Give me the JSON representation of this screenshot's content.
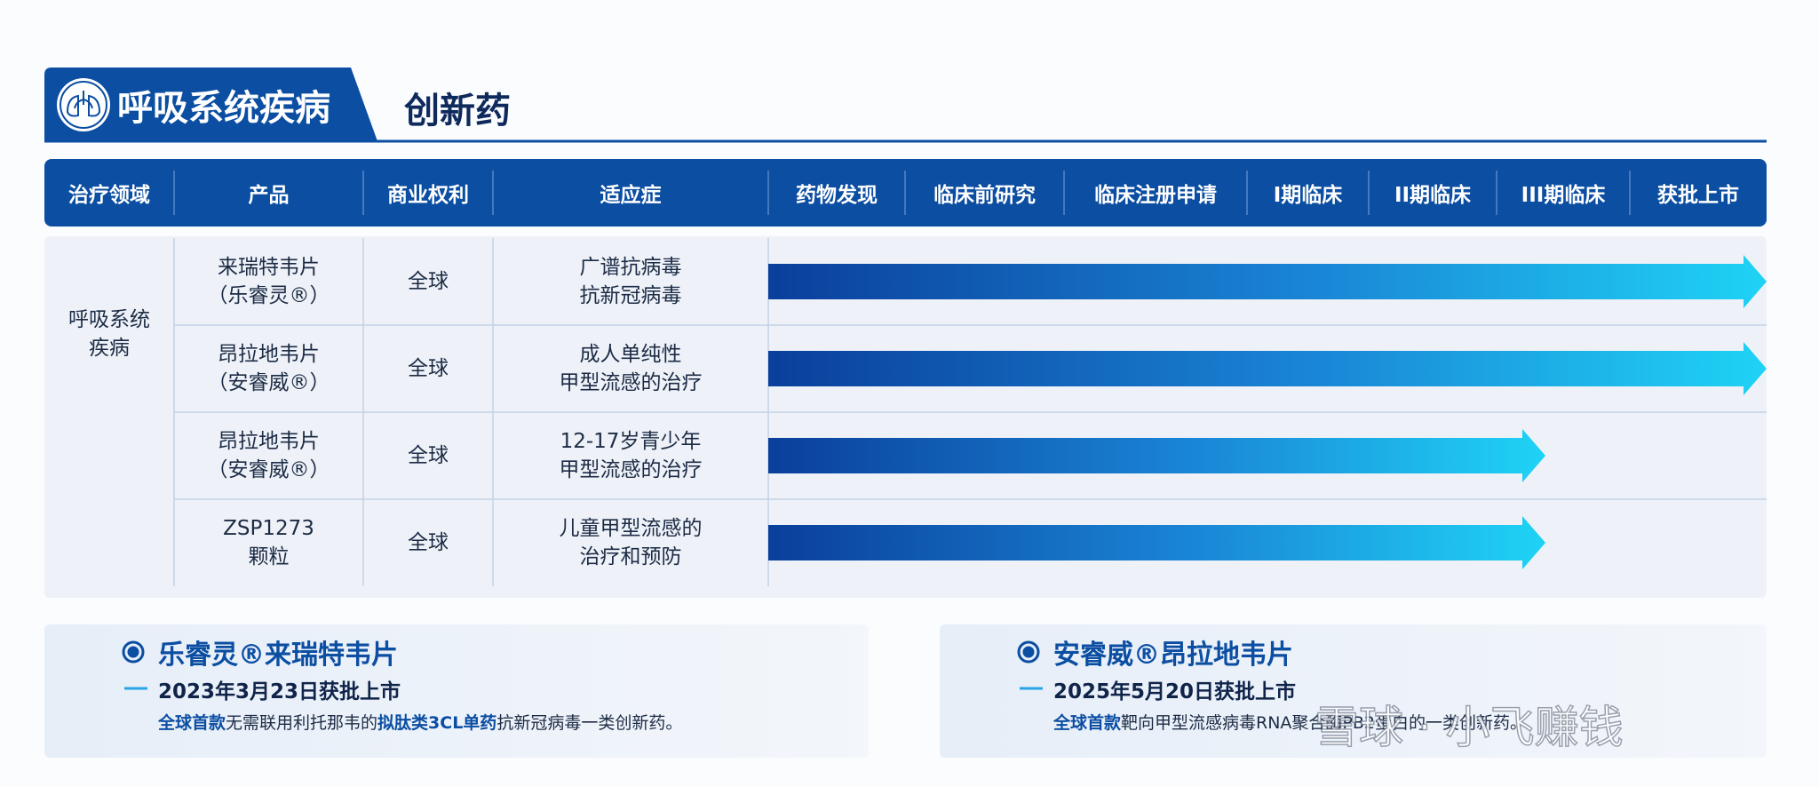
{
  "header": {
    "category": "呼吸系统疾病",
    "title": "创新药"
  },
  "table": {
    "columns": [
      "治疗领域",
      "产品",
      "商业权利",
      "适应症",
      "药物发现",
      "临床前研究",
      "临床注册申请",
      "I期临床",
      "II期临床",
      "III期临床",
      "获批上市"
    ],
    "area": [
      "呼吸系统",
      "疾病"
    ],
    "rows": [
      {
        "product": [
          "来瑞特韦片",
          "（乐睿灵®）"
        ],
        "rights": "全球",
        "indication": [
          "广谱抗病毒",
          "抗新冠病毒"
        ]
      },
      {
        "product": [
          "昂拉地韦片",
          "（安睿威®）"
        ],
        "rights": "全球",
        "indication": [
          "成人单纯性",
          "甲型流感的治疗"
        ]
      },
      {
        "product": [
          "昂拉地韦片",
          "（安睿威®）"
        ],
        "rights": "全球",
        "indication": [
          "12-17岁青少年",
          "甲型流感的治疗"
        ]
      },
      {
        "product": [
          "ZSP1273",
          "颗粒"
        ],
        "rights": "全球",
        "indication": [
          "儿童甲型流感的",
          "治疗和预防"
        ]
      }
    ]
  },
  "highlights": [
    {
      "name": "乐睿灵®来瑞特韦片",
      "date": "2023年3月23日获批上市",
      "desc": [
        {
          "text": "全球首款",
          "emphasis": true
        },
        {
          "text": "无需联用利托那韦的",
          "emphasis": false
        },
        {
          "text": "拟肽类3CL单药",
          "emphasis": true
        },
        {
          "text": "抗新冠病毒一类创新药。",
          "emphasis": false
        }
      ]
    },
    {
      "name": "安睿威®昂拉地韦片",
      "date": "2025年5月20日获批上市",
      "desc": [
        {
          "text": "全球首款",
          "emphasis": true
        },
        {
          "text": "靶向甲型流感病毒RNA聚合酶PB2蛋白的一类创新药。",
          "emphasis": false
        }
      ]
    }
  ],
  "watermark": "雪球 · 小飞赚钱"
}
